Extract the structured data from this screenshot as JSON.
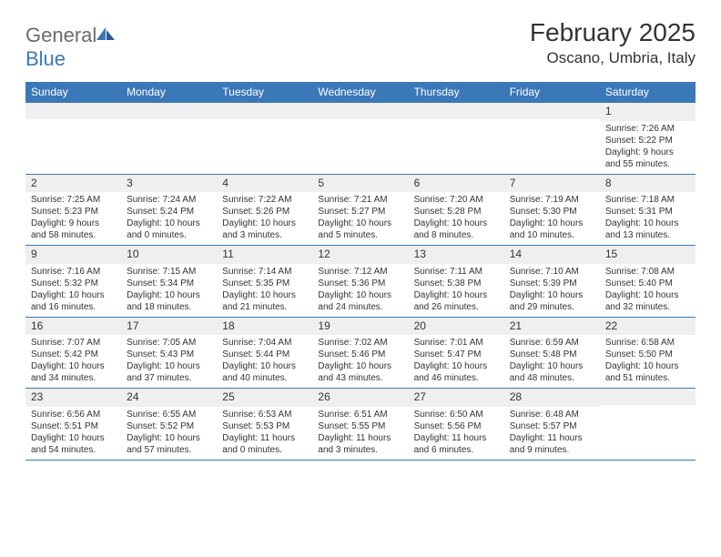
{
  "logo": {
    "text1": "General",
    "text2": "Blue"
  },
  "title": "February 2025",
  "location": "Oscano, Umbria, Italy",
  "colors": {
    "header_bg": "#3b78b8",
    "header_text": "#ffffff",
    "daynum_bg": "#efefef",
    "border": "#3b78b8",
    "text": "#333333",
    "logo_gray": "#6b6b6b",
    "logo_blue": "#3b78b8"
  },
  "days_of_week": [
    "Sunday",
    "Monday",
    "Tuesday",
    "Wednesday",
    "Thursday",
    "Friday",
    "Saturday"
  ],
  "weeks": [
    [
      {
        "day": "",
        "sunrise": "",
        "sunset": "",
        "daylight": ""
      },
      {
        "day": "",
        "sunrise": "",
        "sunset": "",
        "daylight": ""
      },
      {
        "day": "",
        "sunrise": "",
        "sunset": "",
        "daylight": ""
      },
      {
        "day": "",
        "sunrise": "",
        "sunset": "",
        "daylight": ""
      },
      {
        "day": "",
        "sunrise": "",
        "sunset": "",
        "daylight": ""
      },
      {
        "day": "",
        "sunrise": "",
        "sunset": "",
        "daylight": ""
      },
      {
        "day": "1",
        "sunrise": "Sunrise: 7:26 AM",
        "sunset": "Sunset: 5:22 PM",
        "daylight": "Daylight: 9 hours and 55 minutes."
      }
    ],
    [
      {
        "day": "2",
        "sunrise": "Sunrise: 7:25 AM",
        "sunset": "Sunset: 5:23 PM",
        "daylight": "Daylight: 9 hours and 58 minutes."
      },
      {
        "day": "3",
        "sunrise": "Sunrise: 7:24 AM",
        "sunset": "Sunset: 5:24 PM",
        "daylight": "Daylight: 10 hours and 0 minutes."
      },
      {
        "day": "4",
        "sunrise": "Sunrise: 7:22 AM",
        "sunset": "Sunset: 5:26 PM",
        "daylight": "Daylight: 10 hours and 3 minutes."
      },
      {
        "day": "5",
        "sunrise": "Sunrise: 7:21 AM",
        "sunset": "Sunset: 5:27 PM",
        "daylight": "Daylight: 10 hours and 5 minutes."
      },
      {
        "day": "6",
        "sunrise": "Sunrise: 7:20 AM",
        "sunset": "Sunset: 5:28 PM",
        "daylight": "Daylight: 10 hours and 8 minutes."
      },
      {
        "day": "7",
        "sunrise": "Sunrise: 7:19 AM",
        "sunset": "Sunset: 5:30 PM",
        "daylight": "Daylight: 10 hours and 10 minutes."
      },
      {
        "day": "8",
        "sunrise": "Sunrise: 7:18 AM",
        "sunset": "Sunset: 5:31 PM",
        "daylight": "Daylight: 10 hours and 13 minutes."
      }
    ],
    [
      {
        "day": "9",
        "sunrise": "Sunrise: 7:16 AM",
        "sunset": "Sunset: 5:32 PM",
        "daylight": "Daylight: 10 hours and 16 minutes."
      },
      {
        "day": "10",
        "sunrise": "Sunrise: 7:15 AM",
        "sunset": "Sunset: 5:34 PM",
        "daylight": "Daylight: 10 hours and 18 minutes."
      },
      {
        "day": "11",
        "sunrise": "Sunrise: 7:14 AM",
        "sunset": "Sunset: 5:35 PM",
        "daylight": "Daylight: 10 hours and 21 minutes."
      },
      {
        "day": "12",
        "sunrise": "Sunrise: 7:12 AM",
        "sunset": "Sunset: 5:36 PM",
        "daylight": "Daylight: 10 hours and 24 minutes."
      },
      {
        "day": "13",
        "sunrise": "Sunrise: 7:11 AM",
        "sunset": "Sunset: 5:38 PM",
        "daylight": "Daylight: 10 hours and 26 minutes."
      },
      {
        "day": "14",
        "sunrise": "Sunrise: 7:10 AM",
        "sunset": "Sunset: 5:39 PM",
        "daylight": "Daylight: 10 hours and 29 minutes."
      },
      {
        "day": "15",
        "sunrise": "Sunrise: 7:08 AM",
        "sunset": "Sunset: 5:40 PM",
        "daylight": "Daylight: 10 hours and 32 minutes."
      }
    ],
    [
      {
        "day": "16",
        "sunrise": "Sunrise: 7:07 AM",
        "sunset": "Sunset: 5:42 PM",
        "daylight": "Daylight: 10 hours and 34 minutes."
      },
      {
        "day": "17",
        "sunrise": "Sunrise: 7:05 AM",
        "sunset": "Sunset: 5:43 PM",
        "daylight": "Daylight: 10 hours and 37 minutes."
      },
      {
        "day": "18",
        "sunrise": "Sunrise: 7:04 AM",
        "sunset": "Sunset: 5:44 PM",
        "daylight": "Daylight: 10 hours and 40 minutes."
      },
      {
        "day": "19",
        "sunrise": "Sunrise: 7:02 AM",
        "sunset": "Sunset: 5:46 PM",
        "daylight": "Daylight: 10 hours and 43 minutes."
      },
      {
        "day": "20",
        "sunrise": "Sunrise: 7:01 AM",
        "sunset": "Sunset: 5:47 PM",
        "daylight": "Daylight: 10 hours and 46 minutes."
      },
      {
        "day": "21",
        "sunrise": "Sunrise: 6:59 AM",
        "sunset": "Sunset: 5:48 PM",
        "daylight": "Daylight: 10 hours and 48 minutes."
      },
      {
        "day": "22",
        "sunrise": "Sunrise: 6:58 AM",
        "sunset": "Sunset: 5:50 PM",
        "daylight": "Daylight: 10 hours and 51 minutes."
      }
    ],
    [
      {
        "day": "23",
        "sunrise": "Sunrise: 6:56 AM",
        "sunset": "Sunset: 5:51 PM",
        "daylight": "Daylight: 10 hours and 54 minutes."
      },
      {
        "day": "24",
        "sunrise": "Sunrise: 6:55 AM",
        "sunset": "Sunset: 5:52 PM",
        "daylight": "Daylight: 10 hours and 57 minutes."
      },
      {
        "day": "25",
        "sunrise": "Sunrise: 6:53 AM",
        "sunset": "Sunset: 5:53 PM",
        "daylight": "Daylight: 11 hours and 0 minutes."
      },
      {
        "day": "26",
        "sunrise": "Sunrise: 6:51 AM",
        "sunset": "Sunset: 5:55 PM",
        "daylight": "Daylight: 11 hours and 3 minutes."
      },
      {
        "day": "27",
        "sunrise": "Sunrise: 6:50 AM",
        "sunset": "Sunset: 5:56 PM",
        "daylight": "Daylight: 11 hours and 6 minutes."
      },
      {
        "day": "28",
        "sunrise": "Sunrise: 6:48 AM",
        "sunset": "Sunset: 5:57 PM",
        "daylight": "Daylight: 11 hours and 9 minutes."
      },
      {
        "day": "",
        "sunrise": "",
        "sunset": "",
        "daylight": ""
      }
    ]
  ]
}
